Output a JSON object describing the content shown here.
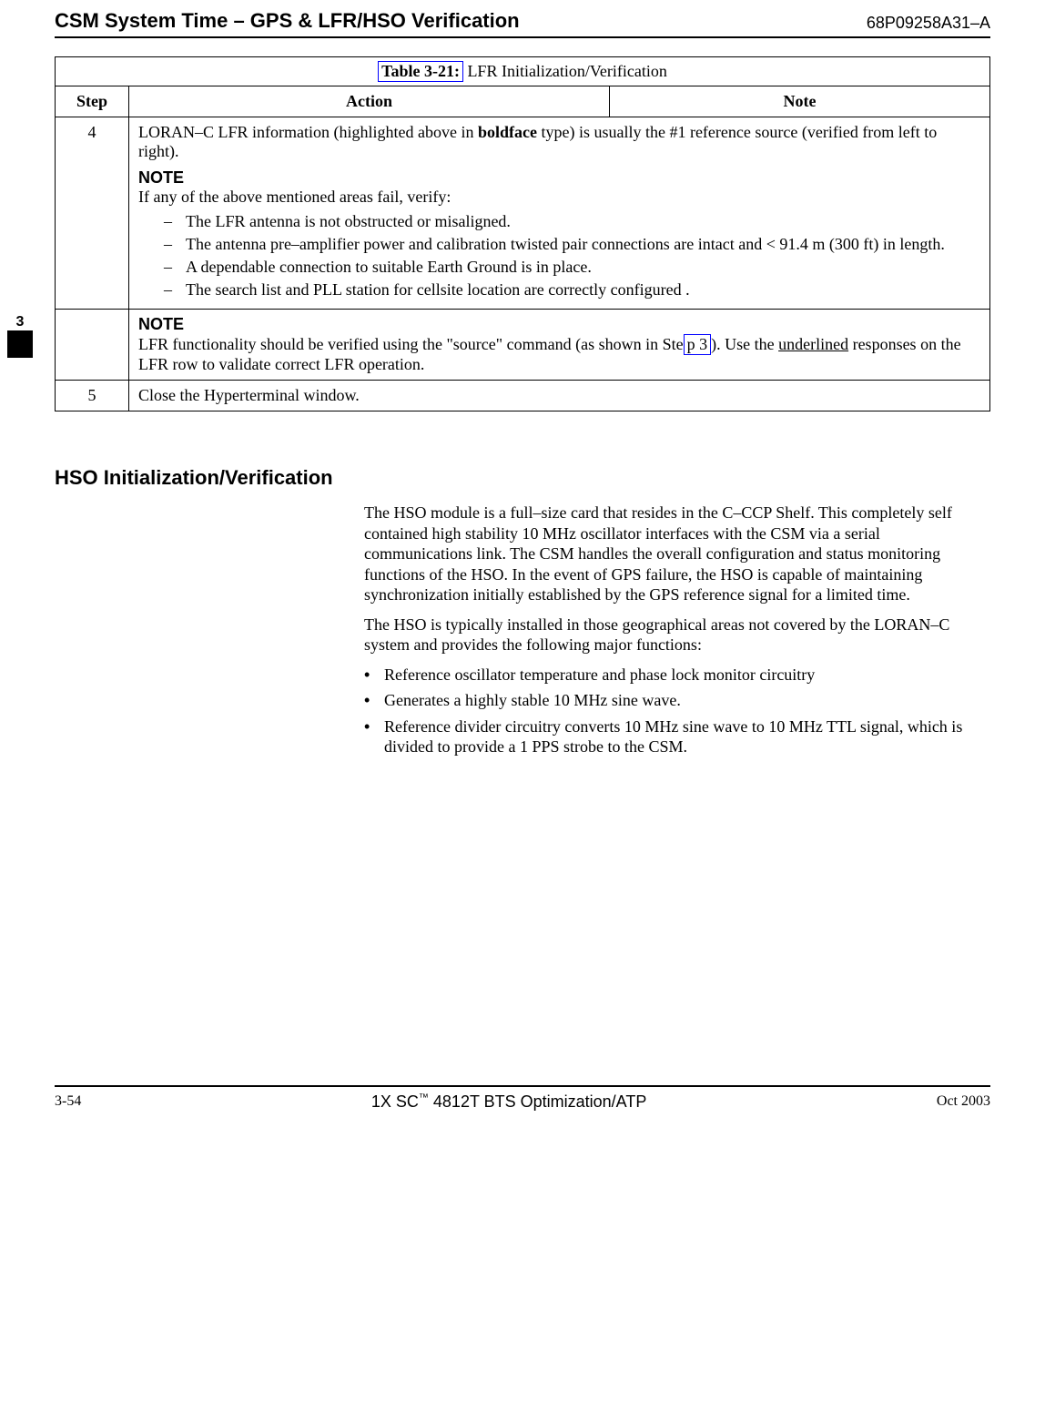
{
  "header": {
    "title": "CSM System Time – GPS & LFR/HSO Verification",
    "doc_number": "68P09258A31–A"
  },
  "side_tab_number": "3",
  "table": {
    "caption_prefix": "Table 3-21:",
    "caption_rest": " LFR Initialization/Verification",
    "columns": {
      "step": "Step",
      "action": "Action",
      "note": "Note"
    },
    "row4": {
      "step": "4",
      "lead_a": "LORAN–C LFR information (highlighted above in ",
      "lead_bold": "boldface",
      "lead_b": " type) is usually the #1 reference source (verified from left to right).",
      "note_header": "NOTE",
      "note_intro": "If any of the above mentioned areas fail, verify:",
      "items": [
        "The LFR antenna is not obstructed or misaligned.",
        "The antenna pre–amplifier power and calibration twisted pair connections are intact and < 91.4 m (300 ft) in length.",
        "A dependable connection to suitable Earth Ground is in place.",
        "The search list and PLL station for cellsite location are correctly configured ."
      ]
    },
    "note_row": {
      "header": "NOTE",
      "text_a": "LFR functionality should be verified using the \"source\" command (as shown in Ste",
      "link": "p 3",
      "text_b": "). Use the ",
      "underlined": "underlined",
      "text_c": " responses on the LFR row to validate correct LFR operation."
    },
    "row5": {
      "step": "5",
      "action": "Close the Hyperterminal window."
    }
  },
  "section_heading": "HSO Initialization/Verification",
  "para1": "The HSO module is a full–size card that resides in the C–CCP Shelf. This completely self contained high stability 10 MHz oscillator interfaces with the CSM via a serial communications link. The CSM handles the overall configuration and status monitoring functions of the HSO. In the event of GPS failure, the HSO is capable of maintaining synchronization initially established by the GPS reference signal for a limited time.",
  "para2": "The HSO is typically installed in those geographical areas not covered by the LORAN–C system and provides the following major functions:",
  "bullets": [
    "Reference oscillator temperature and phase lock monitor circuitry",
    "Generates a highly stable 10 MHz sine wave.",
    "Reference divider circuitry converts 10 MHz sine wave to 10 MHz TTL signal, which is divided to provide a 1 PPS strobe to the CSM."
  ],
  "footer": {
    "page": "3-54",
    "center_a": "1X SC",
    "center_tm": "™",
    "center_b": " 4812T BTS Optimization/ATP",
    "date": "Oct 2003"
  }
}
